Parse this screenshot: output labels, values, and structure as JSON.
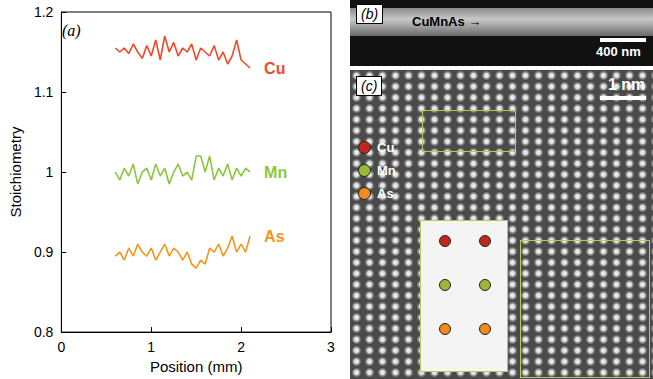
{
  "chart_data": {
    "type": "line",
    "panel_label": "(a)",
    "xlabel": "Position (mm)",
    "ylabel": "Stoichiometry",
    "x": [
      0.6,
      0.65,
      0.7,
      0.75,
      0.8,
      0.85,
      0.9,
      0.95,
      1.0,
      1.05,
      1.1,
      1.15,
      1.2,
      1.25,
      1.3,
      1.35,
      1.4,
      1.45,
      1.5,
      1.55,
      1.6,
      1.65,
      1.7,
      1.75,
      1.8,
      1.85,
      1.9,
      1.95,
      2.0,
      2.05,
      2.1
    ],
    "series": [
      {
        "name": "Cu",
        "color": "#ee4b2b",
        "values": [
          1.155,
          1.15,
          1.155,
          1.148,
          1.16,
          1.15,
          1.142,
          1.158,
          1.145,
          1.165,
          1.14,
          1.17,
          1.15,
          1.162,
          1.145,
          1.155,
          1.15,
          1.16,
          1.14,
          1.155,
          1.15,
          1.145,
          1.158,
          1.14,
          1.15,
          1.135,
          1.145,
          1.165,
          1.14,
          1.135,
          1.13
        ]
      },
      {
        "name": "Mn",
        "color": "#8cc63f",
        "values": [
          1.0,
          0.99,
          1.005,
          0.995,
          1.01,
          0.985,
          1.0,
          1.005,
          0.99,
          1.01,
          0.995,
          1.005,
          0.985,
          1.0,
          1.01,
          0.995,
          1.0,
          0.99,
          1.02,
          1.02,
          1.0,
          1.02,
          0.99,
          1.005,
          0.995,
          1.01,
          0.99,
          1.005,
          0.995,
          1.005,
          1.0
        ]
      },
      {
        "name": "As",
        "color": "#f7941d",
        "values": [
          0.895,
          0.9,
          0.89,
          0.905,
          0.895,
          0.91,
          0.9,
          0.895,
          0.905,
          0.89,
          0.9,
          0.91,
          0.895,
          0.905,
          0.9,
          0.89,
          0.9,
          0.885,
          0.88,
          0.89,
          0.885,
          0.905,
          0.9,
          0.91,
          0.895,
          0.905,
          0.92,
          0.9,
          0.91,
          0.9,
          0.92
        ]
      }
    ],
    "xlim": [
      0,
      3
    ],
    "xticks": [
      0,
      1,
      2,
      3
    ],
    "ylim": [
      0.8,
      1.2
    ],
    "yticks": [
      0.8,
      0.9,
      1,
      1.1,
      1.2
    ],
    "grid": false
  },
  "panels": {
    "b": {
      "label": "(b)",
      "material": "CuMnAs",
      "scale_bar": "400 nm"
    },
    "c": {
      "label": "(c)",
      "scale_bar": "1 nm",
      "legend": [
        {
          "name": "Cu",
          "color": "#c0281c"
        },
        {
          "name": "Mn",
          "color": "#9bb83a"
        },
        {
          "name": "As",
          "color": "#f08a1c"
        }
      ]
    }
  }
}
